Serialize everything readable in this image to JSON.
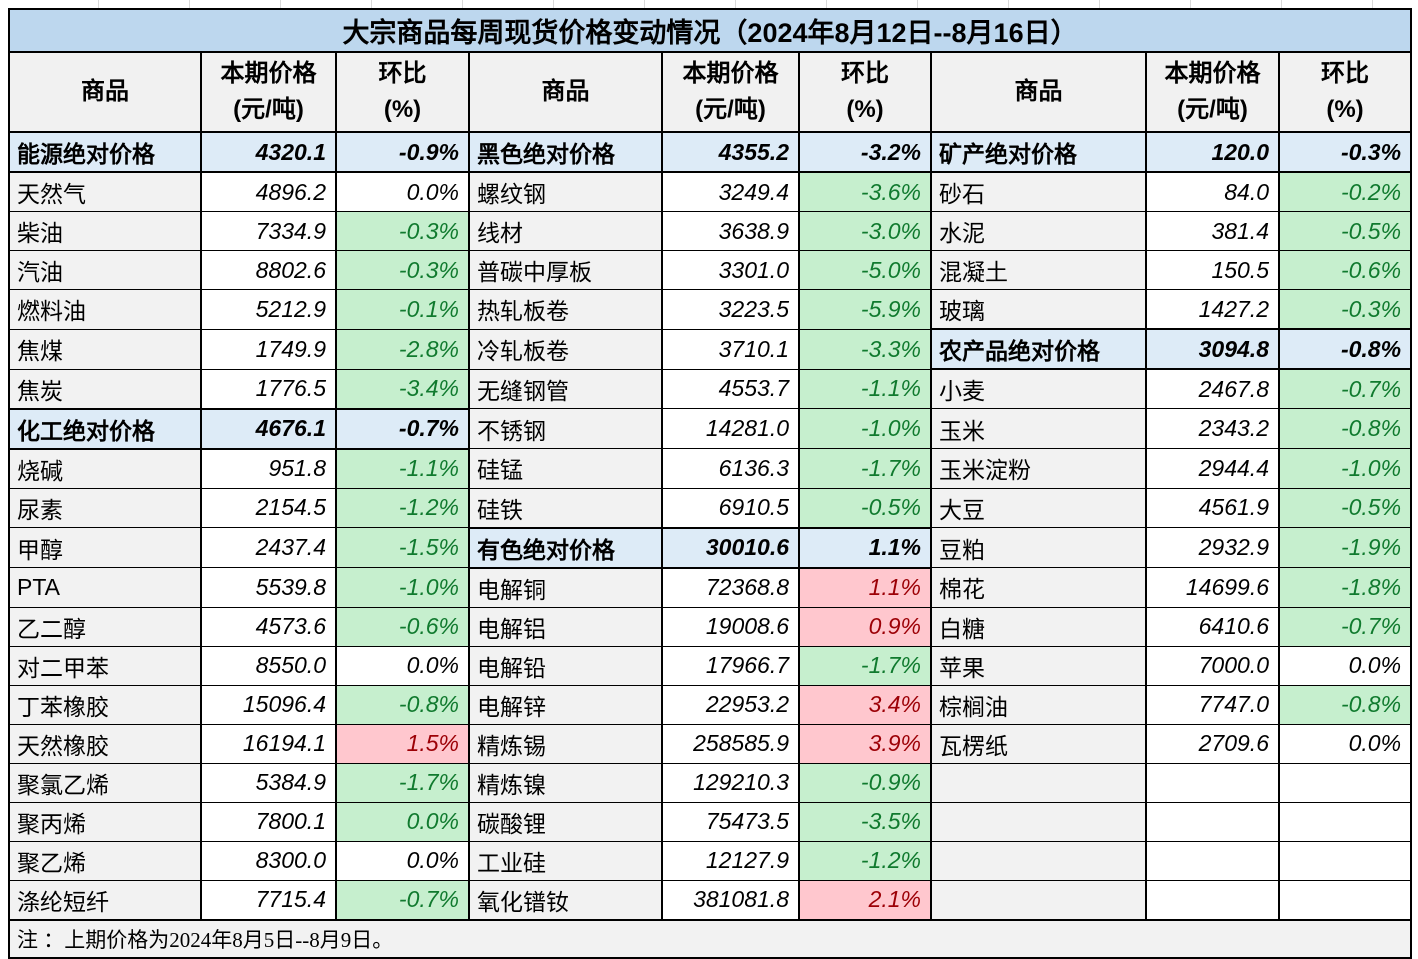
{
  "colors": {
    "title_bg": "#BDD7EE",
    "section_row_bg": "#DDEBF7",
    "label_cell_bg": "#F2F2F2",
    "decrease_bg": "#C6EFCE",
    "decrease_text": "#107A2E",
    "increase_bg": "#FFC7CE",
    "increase_text": "#9C0006",
    "border": "#000000"
  },
  "chart_data": {
    "type": "table",
    "title": "大宗商品每周现货价格变动情况（2024年8月12日--8月16日）",
    "note": "注 ：上期价格为2024年8月5日--8月9日。",
    "column_headers": {
      "commodity": "商品",
      "price_line1": "本期价格",
      "price_line2": "(元/吨)",
      "change_line1": "环比",
      "change_line2": "(%)"
    },
    "groups": [
      {
        "rows": [
          {
            "name": "能源绝对价格",
            "price": "4320.1",
            "pct": "-0.9%",
            "type": "section"
          },
          {
            "name": "天然气",
            "price": "4896.2",
            "pct": "0.0%",
            "type": "item",
            "pct_style": "flat"
          },
          {
            "name": "柴油",
            "price": "7334.9",
            "pct": "-0.3%",
            "type": "item",
            "pct_style": "down"
          },
          {
            "name": "汽油",
            "price": "8802.6",
            "pct": "-0.3%",
            "type": "item",
            "pct_style": "down"
          },
          {
            "name": "燃料油",
            "price": "5212.9",
            "pct": "-0.1%",
            "type": "item",
            "pct_style": "down"
          },
          {
            "name": "焦煤",
            "price": "1749.9",
            "pct": "-2.8%",
            "type": "item",
            "pct_style": "down"
          },
          {
            "name": "焦炭",
            "price": "1776.5",
            "pct": "-3.4%",
            "type": "item",
            "pct_style": "down"
          },
          {
            "name": "化工绝对价格",
            "price": "4676.1",
            "pct": "-0.7%",
            "type": "section"
          },
          {
            "name": "烧碱",
            "price": "951.8",
            "pct": "-1.1%",
            "type": "item",
            "pct_style": "down"
          },
          {
            "name": "尿素",
            "price": "2154.5",
            "pct": "-1.2%",
            "type": "item",
            "pct_style": "down"
          },
          {
            "name": "甲醇",
            "price": "2437.4",
            "pct": "-1.5%",
            "type": "item",
            "pct_style": "down"
          },
          {
            "name": "PTA",
            "price": "5539.8",
            "pct": "-1.0%",
            "type": "item",
            "pct_style": "down"
          },
          {
            "name": "乙二醇",
            "price": "4573.6",
            "pct": "-0.6%",
            "type": "item",
            "pct_style": "down"
          },
          {
            "name": "对二甲苯",
            "price": "8550.0",
            "pct": "0.0%",
            "type": "item",
            "pct_style": "flat"
          },
          {
            "name": "丁苯橡胶",
            "price": "15096.4",
            "pct": "-0.8%",
            "type": "item",
            "pct_style": "down"
          },
          {
            "name": "天然橡胶",
            "price": "16194.1",
            "pct": "1.5%",
            "type": "item",
            "pct_style": "up"
          },
          {
            "name": "聚氯乙烯",
            "price": "5384.9",
            "pct": "-1.7%",
            "type": "item",
            "pct_style": "down"
          },
          {
            "name": "聚丙烯",
            "price": "7800.1",
            "pct": "0.0%",
            "type": "item",
            "pct_style": "down"
          },
          {
            "name": "聚乙烯",
            "price": "8300.0",
            "pct": "0.0%",
            "type": "item",
            "pct_style": "flat"
          },
          {
            "name": "涤纶短纤",
            "price": "7715.4",
            "pct": "-0.7%",
            "type": "item",
            "pct_style": "down"
          }
        ]
      },
      {
        "rows": [
          {
            "name": "黑色绝对价格",
            "price": "4355.2",
            "pct": "-3.2%",
            "type": "section"
          },
          {
            "name": "螺纹钢",
            "price": "3249.4",
            "pct": "-3.6%",
            "type": "item",
            "pct_style": "down"
          },
          {
            "name": "线材",
            "price": "3638.9",
            "pct": "-3.0%",
            "type": "item",
            "pct_style": "down"
          },
          {
            "name": "普碳中厚板",
            "price": "3301.0",
            "pct": "-5.0%",
            "type": "item",
            "pct_style": "down"
          },
          {
            "name": "热轧板卷",
            "price": "3223.5",
            "pct": "-5.9%",
            "type": "item",
            "pct_style": "down"
          },
          {
            "name": "冷轧板卷",
            "price": "3710.1",
            "pct": "-3.3%",
            "type": "item",
            "pct_style": "down"
          },
          {
            "name": "无缝钢管",
            "price": "4553.7",
            "pct": "-1.1%",
            "type": "item",
            "pct_style": "down"
          },
          {
            "name": "不锈钢",
            "price": "14281.0",
            "pct": "-1.0%",
            "type": "item",
            "pct_style": "down"
          },
          {
            "name": "硅锰",
            "price": "6136.3",
            "pct": "-1.7%",
            "type": "item",
            "pct_style": "down"
          },
          {
            "name": "硅铁",
            "price": "6910.5",
            "pct": "-0.5%",
            "type": "item",
            "pct_style": "down"
          },
          {
            "name": "有色绝对价格",
            "price": "30010.6",
            "pct": "1.1%",
            "type": "section"
          },
          {
            "name": "电解铜",
            "price": "72368.8",
            "pct": "1.1%",
            "type": "item",
            "pct_style": "up"
          },
          {
            "name": "电解铝",
            "price": "19008.6",
            "pct": "0.9%",
            "type": "item",
            "pct_style": "up"
          },
          {
            "name": "电解铅",
            "price": "17966.7",
            "pct": "-1.7%",
            "type": "item",
            "pct_style": "down"
          },
          {
            "name": "电解锌",
            "price": "22953.2",
            "pct": "3.4%",
            "type": "item",
            "pct_style": "up"
          },
          {
            "name": "精炼锡",
            "price": "258585.9",
            "pct": "3.9%",
            "type": "item",
            "pct_style": "up"
          },
          {
            "name": "精炼镍",
            "price": "129210.3",
            "pct": "-0.9%",
            "type": "item",
            "pct_style": "down"
          },
          {
            "name": "碳酸锂",
            "price": "75473.5",
            "pct": "-3.5%",
            "type": "item",
            "pct_style": "down"
          },
          {
            "name": "工业硅",
            "price": "12127.9",
            "pct": "-1.2%",
            "type": "item",
            "pct_style": "down"
          },
          {
            "name": "氧化镨钕",
            "price": "381081.8",
            "pct": "2.1%",
            "type": "item",
            "pct_style": "up"
          }
        ]
      },
      {
        "rows": [
          {
            "name": "矿产绝对价格",
            "price": "120.0",
            "pct": "-0.3%",
            "type": "section"
          },
          {
            "name": "砂石",
            "price": "84.0",
            "pct": "-0.2%",
            "type": "item",
            "pct_style": "down"
          },
          {
            "name": "水泥",
            "price": "381.4",
            "pct": "-0.5%",
            "type": "item",
            "pct_style": "down"
          },
          {
            "name": "混凝土",
            "price": "150.5",
            "pct": "-0.6%",
            "type": "item",
            "pct_style": "down"
          },
          {
            "name": "玻璃",
            "price": "1427.2",
            "pct": "-0.3%",
            "type": "item",
            "pct_style": "down"
          },
          {
            "name": "农产品绝对价格",
            "price": "3094.8",
            "pct": "-0.8%",
            "type": "section"
          },
          {
            "name": "小麦",
            "price": "2467.8",
            "pct": "-0.7%",
            "type": "item",
            "pct_style": "down"
          },
          {
            "name": "玉米",
            "price": "2343.2",
            "pct": "-0.8%",
            "type": "item",
            "pct_style": "down"
          },
          {
            "name": "玉米淀粉",
            "price": "2944.4",
            "pct": "-1.0%",
            "type": "item",
            "pct_style": "down"
          },
          {
            "name": "大豆",
            "price": "4561.9",
            "pct": "-0.5%",
            "type": "item",
            "pct_style": "down"
          },
          {
            "name": "豆粕",
            "price": "2932.9",
            "pct": "-1.9%",
            "type": "item",
            "pct_style": "down"
          },
          {
            "name": "棉花",
            "price": "14699.6",
            "pct": "-1.8%",
            "type": "item",
            "pct_style": "down"
          },
          {
            "name": "白糖",
            "price": "6410.6",
            "pct": "-0.7%",
            "type": "item",
            "pct_style": "down"
          },
          {
            "name": "苹果",
            "price": "7000.0",
            "pct": "0.0%",
            "type": "item",
            "pct_style": "flat"
          },
          {
            "name": "棕榈油",
            "price": "7747.0",
            "pct": "-0.8%",
            "type": "item",
            "pct_style": "down"
          },
          {
            "name": "瓦楞纸",
            "price": "2709.6",
            "pct": "0.0%",
            "type": "item",
            "pct_style": "flat"
          },
          {
            "name": "",
            "price": "",
            "pct": "",
            "type": "empty"
          },
          {
            "name": "",
            "price": "",
            "pct": "",
            "type": "empty"
          },
          {
            "name": "",
            "price": "",
            "pct": "",
            "type": "empty"
          },
          {
            "name": "",
            "price": "",
            "pct": "",
            "type": "empty"
          }
        ]
      }
    ]
  }
}
